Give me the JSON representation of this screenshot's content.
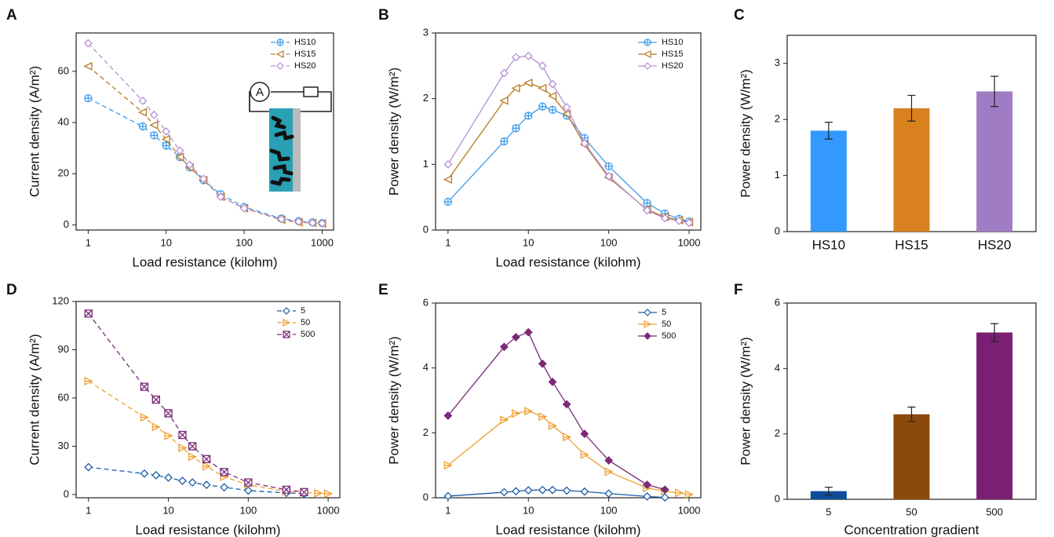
{
  "chart_data": [
    {
      "type": "line",
      "panel": "A",
      "xlabel": "Load resistance (kilohm)",
      "ylabel": "Current density (A/m²)",
      "xscale": "log",
      "xlim": [
        0.7,
        1400
      ],
      "xticks": [
        1,
        10,
        100,
        1000
      ],
      "ylim": [
        -2,
        75
      ],
      "yticks": [
        0,
        20,
        40,
        60
      ],
      "line_style": "dashed",
      "legend": "upper right",
      "inset_meter_label": "A",
      "x": [
        1,
        5,
        7,
        10,
        15,
        20,
        30,
        50,
        100,
        300,
        500,
        750,
        1000
      ],
      "series": [
        {
          "name": "HS10",
          "color": "#3d9be9",
          "marker": "circle-plus",
          "values": [
            49.5,
            38.5,
            35,
            31,
            26.5,
            22.5,
            17.5,
            12,
            7,
            2.5,
            1.5,
            1,
            0.7
          ]
        },
        {
          "name": "HS15",
          "color": "#b8781e",
          "marker": "triangle-left",
          "values": [
            62,
            44,
            39,
            33.5,
            26.5,
            22.5,
            17.5,
            11,
            6.5,
            2,
            1,
            0.8,
            0.5
          ]
        },
        {
          "name": "HS20",
          "color": "#b58fd6",
          "marker": "diamond",
          "values": [
            71,
            48.5,
            43,
            36.5,
            29,
            23.5,
            18,
            11,
            6.5,
            2.3,
            1.3,
            0.8,
            0.6
          ]
        }
      ]
    },
    {
      "type": "line",
      "panel": "B",
      "xlabel": "Load resistance (kilohm)",
      "ylabel": "Power density (W/m²)",
      "xscale": "log",
      "xlim": [
        0.7,
        1400
      ],
      "xticks": [
        1,
        10,
        100,
        1000
      ],
      "ylim": [
        0,
        3
      ],
      "yticks": [
        0,
        1,
        2,
        3
      ],
      "line_style": "solid",
      "legend": "upper right",
      "x": [
        1,
        5,
        7,
        10,
        15,
        20,
        30,
        50,
        100,
        300,
        500,
        750,
        1000
      ],
      "series": [
        {
          "name": "HS10",
          "color": "#3d9be9",
          "marker": "circle-plus",
          "values": [
            0.43,
            1.35,
            1.55,
            1.74,
            1.88,
            1.83,
            1.74,
            1.4,
            0.97,
            0.41,
            0.25,
            0.17,
            0.13
          ]
        },
        {
          "name": "HS15",
          "color": "#b8781e",
          "marker": "triangle-left",
          "values": [
            0.77,
            1.97,
            2.16,
            2.24,
            2.16,
            2.04,
            1.77,
            1.3,
            0.8,
            0.31,
            0.2,
            0.15,
            0.12
          ]
        },
        {
          "name": "HS20",
          "color": "#b58fd6",
          "marker": "diamond",
          "values": [
            1.0,
            2.39,
            2.63,
            2.65,
            2.5,
            2.22,
            1.87,
            1.32,
            0.82,
            0.3,
            0.18,
            0.14,
            0.11
          ]
        }
      ]
    },
    {
      "type": "bar",
      "panel": "C",
      "ylabel": "Power density (W/m²)",
      "ylim": [
        0,
        3.5
      ],
      "yticks": [
        0,
        1,
        2,
        3
      ],
      "categories": [
        "HS10",
        "HS15",
        "HS20"
      ],
      "values": [
        1.8,
        2.2,
        2.5
      ],
      "errors": [
        0.15,
        0.23,
        0.27
      ],
      "colors": [
        "#3399ff",
        "#d9801f",
        "#a07cc5"
      ]
    },
    {
      "type": "line",
      "panel": "D",
      "xlabel": "Load resistance (kilohm)",
      "ylabel": "Current density (A/m²)",
      "xscale": "log",
      "xlim": [
        0.7,
        1400
      ],
      "xticks": [
        1,
        10,
        100,
        1000
      ],
      "ylim": [
        -2,
        120
      ],
      "yticks": [
        0,
        30,
        60,
        90,
        120
      ],
      "line_style": "dashed",
      "legend": "upper right",
      "x": [
        1,
        5,
        7,
        10,
        15,
        20,
        30,
        50,
        100,
        300,
        500,
        750,
        1000
      ],
      "series": [
        {
          "name": "5",
          "color": "#1a5fa8",
          "marker": "diamond",
          "values": [
            17,
            13,
            12,
            10.5,
            8.5,
            7.5,
            6,
            4.5,
            2.5,
            1,
            0.5,
            null,
            null
          ]
        },
        {
          "name": "50",
          "color": "#f0a030",
          "marker": "triangle-right",
          "values": [
            70.5,
            48,
            42,
            36.5,
            29,
            23.5,
            17.5,
            11,
            6,
            2,
            1.2,
            0.8,
            0.5
          ]
        },
        {
          "name": "500",
          "color": "#7a2a78",
          "marker": "x-square",
          "values": [
            112.5,
            67,
            59,
            50.5,
            37,
            30,
            22,
            14,
            7.5,
            3,
            1.5,
            null,
            null
          ]
        }
      ]
    },
    {
      "type": "line",
      "panel": "E",
      "xlabel": "Load resistance (kilohm)",
      "ylabel": "Power density (W/m²)",
      "xscale": "log",
      "xlim": [
        0.7,
        1400
      ],
      "xticks": [
        1,
        10,
        100,
        1000
      ],
      "ylim": [
        0,
        6
      ],
      "yticks": [
        0,
        2,
        4,
        6
      ],
      "line_style": "solid",
      "legend": "upper right",
      "x": [
        1,
        5,
        7,
        10,
        15,
        20,
        30,
        50,
        100,
        300,
        500,
        750,
        1000
      ],
      "series": [
        {
          "name": "5",
          "color": "#1a5fa8",
          "marker": "diamond",
          "values": [
            0.05,
            0.17,
            0.2,
            0.23,
            0.24,
            0.24,
            0.22,
            0.19,
            0.13,
            0.04,
            0.01,
            null,
            null
          ]
        },
        {
          "name": "50",
          "color": "#f0a030",
          "marker": "triangle-right",
          "values": [
            1.0,
            2.4,
            2.6,
            2.67,
            2.5,
            2.22,
            1.87,
            1.33,
            0.8,
            0.3,
            0.2,
            0.15,
            0.1
          ]
        },
        {
          "name": "500",
          "color": "#7a2a78",
          "marker": "diamond-filled",
          "values": [
            2.53,
            4.65,
            4.95,
            5.1,
            4.13,
            3.57,
            2.88,
            1.97,
            1.15,
            0.4,
            0.25,
            null,
            null
          ]
        }
      ]
    },
    {
      "type": "bar",
      "panel": "F",
      "xlabel": "Concentration gradient",
      "ylabel": "Power density (W/m²)",
      "ylim": [
        0,
        6
      ],
      "yticks": [
        0,
        2,
        4,
        6
      ],
      "categories": [
        "5",
        "50",
        "500"
      ],
      "values": [
        0.25,
        2.6,
        5.1
      ],
      "errors": [
        0.12,
        0.22,
        0.27
      ],
      "colors": [
        "#0f4c9a",
        "#8b4a0c",
        "#7a1f73"
      ]
    }
  ]
}
